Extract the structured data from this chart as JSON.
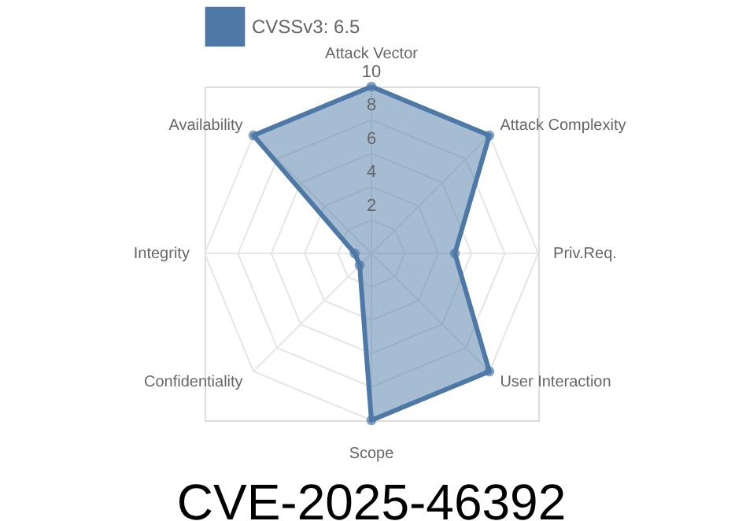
{
  "chart_data": {
    "type": "radar",
    "title": "CVE-2025-46392",
    "categories": [
      "Attack Vector",
      "Attack Complexity",
      "Priv.Req.",
      "User Interaction",
      "Scope",
      "Confidentiality",
      "Integrity",
      "Availability"
    ],
    "series": [
      {
        "name": "CVSSv3: 6.5",
        "color": "#4e79a7",
        "values": [
          10,
          10,
          5,
          10,
          10,
          1,
          1,
          10
        ]
      }
    ],
    "ylim": [
      0,
      10
    ],
    "yticks": [
      2,
      4,
      6,
      8,
      10
    ],
    "grid": true,
    "legend": "top",
    "marker": "circle"
  }
}
